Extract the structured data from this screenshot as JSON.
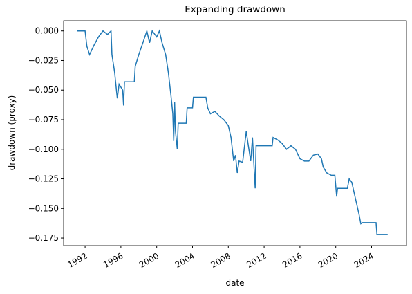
{
  "chart_data": {
    "type": "line",
    "title": "Expanding drawdown",
    "xlabel": "date",
    "ylabel": "drawdown (proxy)",
    "xlim": [
      1989.6,
      2027.9
    ],
    "ylim": [
      -0.1814,
      0.0086
    ],
    "xticks": [
      1992,
      1996,
      2000,
      2004,
      2008,
      2012,
      2016,
      2020,
      2024
    ],
    "yticks": [
      {
        "value": 0,
        "label": "0.000"
      },
      {
        "value": -0.025,
        "label": "−0.025"
      },
      {
        "value": -0.05,
        "label": "−0.050"
      },
      {
        "value": -0.075,
        "label": "−0.075"
      },
      {
        "value": -0.1,
        "label": "−0.100"
      },
      {
        "value": -0.125,
        "label": "−0.125"
      },
      {
        "value": -0.15,
        "label": "−0.150"
      },
      {
        "value": -0.175,
        "label": "−0.175"
      }
    ],
    "x": [
      1991.1,
      1992.0,
      1992.2,
      1992.5,
      1993.0,
      1993.5,
      1994.0,
      1994.5,
      1994.9,
      1995.0,
      1995.3,
      1995.5,
      1995.6,
      1995.8,
      1996.2,
      1996.3,
      1996.4,
      1997.5,
      1997.6,
      1998.0,
      1998.5,
      1998.9,
      1999.2,
      1999.5,
      2000.0,
      2000.3,
      2000.6,
      2001.0,
      2001.3,
      2001.6,
      2001.8,
      2001.9,
      2002.0,
      2002.1,
      2002.3,
      2002.4,
      2003.3,
      2003.4,
      2004.0,
      2004.1,
      2005.5,
      2005.7,
      2006.0,
      2006.5,
      2007.0,
      2007.5,
      2008.0,
      2008.3,
      2008.6,
      2008.8,
      2009.0,
      2009.2,
      2009.6,
      2010.0,
      2010.3,
      2010.5,
      2010.7,
      2011.0,
      2011.1,
      2012.9,
      2013.0,
      2013.5,
      2014.0,
      2014.5,
      2015.0,
      2015.5,
      2016.0,
      2016.5,
      2017.0,
      2017.5,
      2018.0,
      2018.4,
      2018.6,
      2019.0,
      2019.5,
      2019.9,
      2020.1,
      2020.2,
      2021.3,
      2021.5,
      2021.8,
      2022.0,
      2022.3,
      2022.6,
      2022.8,
      2023.0,
      2024.5,
      2024.6,
      2025.8
    ],
    "series": [
      {
        "name": "drawdown",
        "color": "#1f77b4",
        "values": [
          0,
          0,
          -0.013,
          -0.02,
          -0.012,
          -0.005,
          0,
          -0.003,
          0,
          -0.02,
          -0.035,
          -0.05,
          -0.057,
          -0.045,
          -0.05,
          -0.063,
          -0.043,
          -0.043,
          -0.03,
          -0.02,
          -0.009,
          0,
          -0.01,
          0,
          -0.005,
          0,
          -0.01,
          -0.02,
          -0.035,
          -0.055,
          -0.07,
          -0.093,
          -0.06,
          -0.085,
          -0.1,
          -0.078,
          -0.078,
          -0.065,
          -0.065,
          -0.056,
          -0.056,
          -0.065,
          -0.07,
          -0.068,
          -0.072,
          -0.075,
          -0.08,
          -0.09,
          -0.11,
          -0.105,
          -0.12,
          -0.11,
          -0.111,
          -0.085,
          -0.1,
          -0.11,
          -0.09,
          -0.133,
          -0.097,
          -0.097,
          -0.09,
          -0.092,
          -0.095,
          -0.1,
          -0.097,
          -0.1,
          -0.108,
          -0.11,
          -0.11,
          -0.105,
          -0.104,
          -0.108,
          -0.115,
          -0.12,
          -0.122,
          -0.122,
          -0.14,
          -0.133,
          -0.133,
          -0.125,
          -0.128,
          -0.135,
          -0.145,
          -0.155,
          -0.163,
          -0.162,
          -0.162,
          -0.172,
          -0.172
        ]
      }
    ]
  }
}
